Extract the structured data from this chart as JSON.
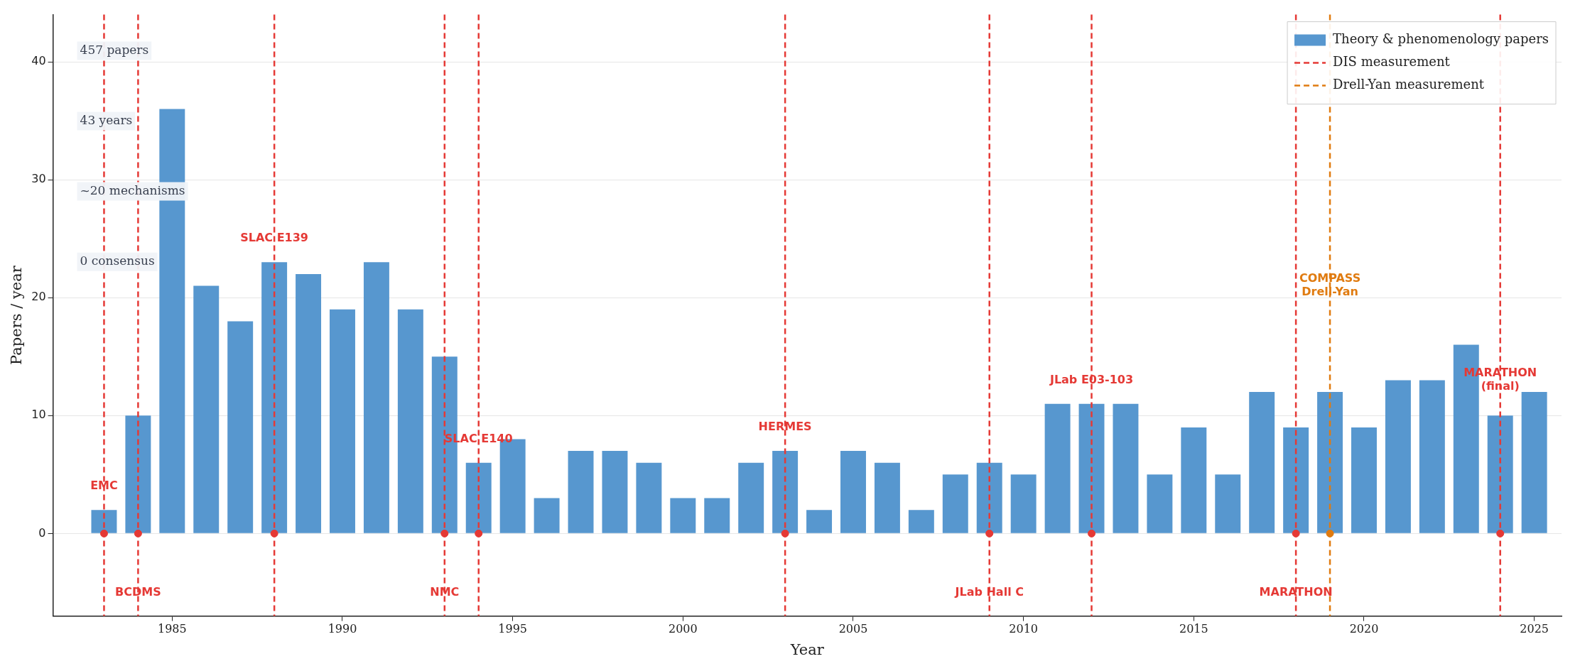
{
  "chart_data": {
    "type": "bar",
    "xlabel": "Year",
    "ylabel": "Papers / year",
    "x": [
      1983,
      1984,
      1985,
      1986,
      1987,
      1988,
      1989,
      1990,
      1991,
      1992,
      1993,
      1994,
      1995,
      1996,
      1997,
      1998,
      1999,
      2000,
      2001,
      2002,
      2003,
      2004,
      2005,
      2006,
      2007,
      2008,
      2009,
      2010,
      2011,
      2012,
      2013,
      2014,
      2015,
      2016,
      2017,
      2018,
      2019,
      2020,
      2021,
      2022,
      2023,
      2024,
      2025
    ],
    "series": [
      {
        "name": "Theory & phenomenology papers",
        "color": "#5797cf",
        "values": [
          2,
          10,
          36,
          21,
          18,
          23,
          22,
          19,
          23,
          19,
          15,
          6,
          8,
          3,
          7,
          7,
          6,
          3,
          3,
          6,
          7,
          2,
          7,
          6,
          2,
          5,
          6,
          5,
          11,
          11,
          11,
          5,
          9,
          5,
          12,
          9,
          12,
          9,
          13,
          13,
          16,
          10,
          12
        ]
      },
      {
        "name": "DIS measurement",
        "type": "scatter",
        "marker": "circle",
        "x": [
          1983,
          1984,
          1988,
          1993,
          1994,
          2003,
          2009,
          2012,
          2018,
          2024
        ],
        "values": [
          0,
          0,
          0,
          0,
          0,
          0,
          0,
          0,
          0,
          0
        ],
        "color": "#e53935"
      },
      {
        "name": "Drell-Yan measurement",
        "type": "scatter",
        "marker": "circle",
        "x": [
          2019
        ],
        "values": [
          0
        ],
        "color": "#e07b10"
      }
    ],
    "xlim": [
      1981.5,
      2025.8
    ],
    "xticks": [
      1985,
      1990,
      1995,
      2000,
      2005,
      2010,
      2015,
      2020,
      2025
    ],
    "ylim": [
      -7,
      44
    ],
    "yticks": [
      0,
      10,
      20,
      30,
      40
    ],
    "grid": "y",
    "legend": "top right",
    "ref_lines": [
      {
        "axis": "x",
        "value": 1983,
        "color": "#e53935",
        "line_style": "dashed"
      },
      {
        "axis": "x",
        "value": 1984,
        "color": "#e53935",
        "line_style": "dashed"
      },
      {
        "axis": "x",
        "value": 1988,
        "color": "#e53935",
        "line_style": "dashed"
      },
      {
        "axis": "x",
        "value": 1993,
        "color": "#e53935",
        "line_style": "dashed"
      },
      {
        "axis": "x",
        "value": 1994,
        "color": "#e53935",
        "line_style": "dashed"
      },
      {
        "axis": "x",
        "value": 2003,
        "color": "#e53935",
        "line_style": "dashed"
      },
      {
        "axis": "x",
        "value": 2009,
        "color": "#e53935",
        "line_style": "dashed"
      },
      {
        "axis": "x",
        "value": 2012,
        "color": "#e53935",
        "line_style": "dashed"
      },
      {
        "axis": "x",
        "value": 2018,
        "color": "#e53935",
        "line_style": "dashed"
      },
      {
        "axis": "x",
        "value": 2024,
        "color": "#e53935",
        "line_style": "dashed"
      },
      {
        "axis": "x",
        "value": 2019,
        "color": "#e07b10",
        "line_style": "dashed"
      }
    ],
    "annotations": [
      "457 papers",
      "43 years",
      "~20 mechanisms",
      "0 consensus",
      {
        "text": "EMC",
        "x": 1983,
        "y": 4
      },
      {
        "text": "BCDMS",
        "x": 1984,
        "y": -5
      },
      {
        "text": "SLAC E139",
        "x": 1988,
        "y": 25
      },
      {
        "text": "NMC",
        "x": 1993,
        "y": -5
      },
      {
        "text": "SLAC E140",
        "x": 1994,
        "y": 8
      },
      {
        "text": "HERMES",
        "x": 2003,
        "y": 9
      },
      {
        "text": "JLab Hall C",
        "x": 2009,
        "y": -5
      },
      {
        "text": "JLab E03-103",
        "x": 2012,
        "y": 13
      },
      {
        "text": "MARATHON",
        "x": 2018,
        "y": -5
      },
      {
        "text": "COMPASS\nDrell-Yan",
        "x": 2019,
        "y": 21
      },
      {
        "text": "MARATHON\n(final)",
        "x": 2024,
        "y": 13
      }
    ]
  }
}
